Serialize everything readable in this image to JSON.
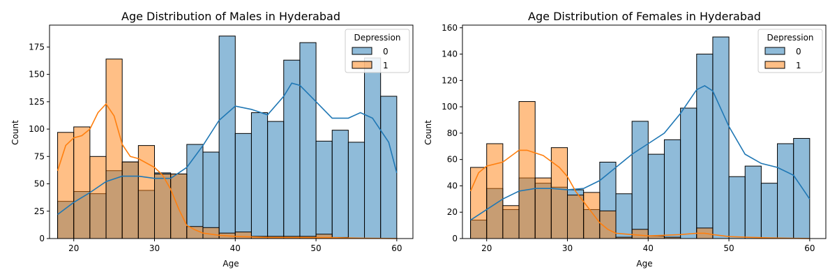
{
  "chart_data": [
    {
      "type": "histogram",
      "title": "Age Distribution of Males in Hyderabad",
      "xlabel": "Age",
      "ylabel": "Count",
      "xlim": [
        17,
        62
      ],
      "ylim": [
        0,
        195
      ],
      "xticks": [
        20,
        30,
        40,
        50,
        60
      ],
      "yticks": [
        0,
        25,
        50,
        75,
        100,
        125,
        150,
        175
      ],
      "bin_edges": [
        18,
        20,
        22,
        24,
        26,
        28,
        30,
        32,
        34,
        36,
        38,
        40,
        42,
        44,
        46,
        48,
        50,
        52,
        54,
        56,
        58,
        60
      ],
      "legend": {
        "title": "Depression",
        "position": "top-right"
      },
      "series": [
        {
          "name": "0",
          "color": "#1f77b4",
          "values": [
            34,
            43,
            41,
            62,
            70,
            44,
            60,
            59,
            86,
            79,
            185,
            96,
            115,
            107,
            163,
            179,
            89,
            99,
            88,
            165,
            130
          ],
          "kde": [
            [
              18,
              22
            ],
            [
              20,
              33
            ],
            [
              22,
              42
            ],
            [
              24,
              52
            ],
            [
              26,
              57
            ],
            [
              28,
              57
            ],
            [
              30,
              55
            ],
            [
              32,
              55
            ],
            [
              34,
              65
            ],
            [
              36,
              85
            ],
            [
              38,
              108
            ],
            [
              40,
              121
            ],
            [
              42,
              118
            ],
            [
              44,
              113
            ],
            [
              46,
              130
            ],
            [
              47,
              142
            ],
            [
              48,
              140
            ],
            [
              50,
              125
            ],
            [
              52,
              110
            ],
            [
              54,
              110
            ],
            [
              55.5,
              115
            ],
            [
              57,
              110
            ],
            [
              59,
              88
            ],
            [
              60,
              60
            ]
          ]
        },
        {
          "name": "1",
          "color": "#ff7f0e",
          "values": [
            97,
            102,
            75,
            164,
            70,
            85,
            59,
            59,
            11,
            10,
            5,
            6,
            2,
            2,
            2,
            2,
            4,
            1,
            0,
            0,
            0
          ],
          "kde": [
            [
              18,
              62
            ],
            [
              19,
              85
            ],
            [
              20,
              92
            ],
            [
              21,
              94
            ],
            [
              22,
              100
            ],
            [
              23,
              115
            ],
            [
              24,
              123
            ],
            [
              25,
              112
            ],
            [
              26,
              86
            ],
            [
              27,
              75
            ],
            [
              28,
              73
            ],
            [
              30,
              65
            ],
            [
              31,
              58
            ],
            [
              32,
              45
            ],
            [
              33,
              27
            ],
            [
              34,
              12
            ],
            [
              35,
              8
            ],
            [
              36,
              5
            ],
            [
              38,
              3
            ],
            [
              40,
              2
            ],
            [
              44,
              1
            ],
            [
              48,
              1
            ],
            [
              52,
              0.8
            ],
            [
              56,
              0.3
            ],
            [
              60,
              0
            ]
          ]
        }
      ]
    },
    {
      "type": "histogram",
      "title": "Age Distribution of Females in Hyderabad",
      "xlabel": "Age",
      "ylabel": "Count",
      "xlim": [
        17,
        62
      ],
      "ylim": [
        0,
        162
      ],
      "xticks": [
        20,
        30,
        40,
        50,
        60
      ],
      "yticks": [
        0,
        20,
        40,
        60,
        80,
        100,
        120,
        140,
        160
      ],
      "bin_edges": [
        18,
        20,
        22,
        24,
        26,
        28,
        30,
        32,
        34,
        36,
        38,
        40,
        42,
        44,
        46,
        48,
        50,
        52,
        54,
        56,
        58,
        60
      ],
      "legend": {
        "title": "Depression",
        "position": "top-right"
      },
      "series": [
        {
          "name": "0",
          "color": "#1f77b4",
          "values": [
            14,
            38,
            22,
            46,
            42,
            39,
            37,
            22,
            58,
            34,
            89,
            64,
            75,
            99,
            140,
            153,
            47,
            55,
            42,
            72,
            76
          ],
          "kde": [
            [
              18,
              14
            ],
            [
              20,
              22
            ],
            [
              22,
              30
            ],
            [
              24,
              36
            ],
            [
              26,
              38
            ],
            [
              28,
              38
            ],
            [
              30,
              37
            ],
            [
              32,
              38
            ],
            [
              34,
              44
            ],
            [
              36,
              54
            ],
            [
              38,
              64
            ],
            [
              40,
              72
            ],
            [
              42,
              80
            ],
            [
              44,
              95
            ],
            [
              46,
              113
            ],
            [
              47,
              116
            ],
            [
              48,
              112
            ],
            [
              50,
              85
            ],
            [
              52,
              64
            ],
            [
              54,
              57
            ],
            [
              56,
              54
            ],
            [
              58,
              48
            ],
            [
              60,
              30
            ]
          ]
        },
        {
          "name": "1",
          "color": "#ff7f0e",
          "values": [
            54,
            72,
            25,
            104,
            46,
            69,
            33,
            35,
            21,
            1,
            7,
            2,
            1,
            0,
            8,
            0,
            0,
            0,
            0,
            0,
            0
          ],
          "kde": [
            [
              18,
              36
            ],
            [
              19,
              50
            ],
            [
              20,
              55
            ],
            [
              22,
              58
            ],
            [
              24,
              67
            ],
            [
              25,
              67
            ],
            [
              27,
              63
            ],
            [
              29,
              54
            ],
            [
              30,
              47
            ],
            [
              31,
              36
            ],
            [
              32,
              28
            ],
            [
              33,
              20
            ],
            [
              34,
              12
            ],
            [
              35,
              7
            ],
            [
              36,
              4
            ],
            [
              38,
              3
            ],
            [
              40,
              2
            ],
            [
              42,
              2.5
            ],
            [
              44,
              3
            ],
            [
              46,
              4
            ],
            [
              47,
              4
            ],
            [
              48,
              3
            ],
            [
              50,
              1.5
            ],
            [
              52,
              1
            ],
            [
              55,
              0.5
            ],
            [
              60,
              0
            ]
          ]
        }
      ]
    }
  ]
}
